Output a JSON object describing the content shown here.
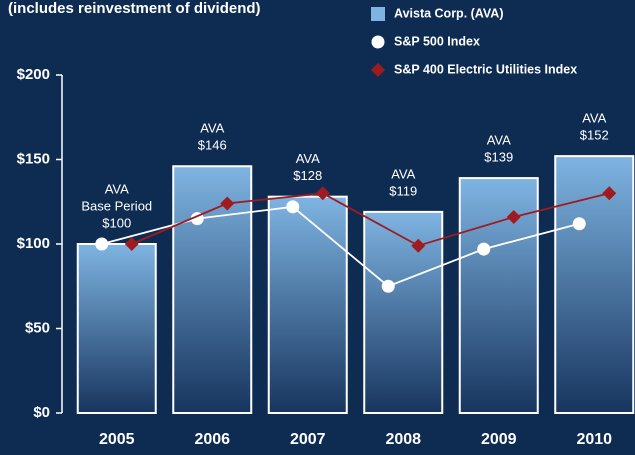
{
  "chart_data": {
    "type": "bar",
    "title": "(includes reinvestment of dividend)",
    "categories": [
      "2005",
      "2006",
      "2007",
      "2008",
      "2009",
      "2010"
    ],
    "bar_label": "AVA",
    "base_label": "Base Period",
    "series": [
      {
        "name": "Avista Corp. (AVA)",
        "color": "#7fb4e2",
        "marker": "bar",
        "values": [
          100,
          146,
          128,
          119,
          139,
          152
        ],
        "value_labels": [
          "$100",
          "$146",
          "$128",
          "$119",
          "$139",
          "$152"
        ]
      },
      {
        "name": "S&P 500 Index",
        "color": "#ffffff",
        "marker": "circle",
        "values": [
          100,
          115,
          122,
          75,
          97,
          112
        ]
      },
      {
        "name": "S&P 400 Electric Utilities Index",
        "color": "#9e1c1f",
        "marker": "diamond",
        "values": [
          100,
          124,
          130,
          99,
          116,
          130
        ]
      }
    ],
    "ylim": [
      0,
      200
    ],
    "yticks": [
      {
        "value": 0,
        "label": "$0"
      },
      {
        "value": 50,
        "label": "$50"
      },
      {
        "value": 100,
        "label": "$100"
      },
      {
        "value": 150,
        "label": "$150"
      },
      {
        "value": 200,
        "label": "$200"
      }
    ],
    "grid": false,
    "legend": "top-right"
  }
}
